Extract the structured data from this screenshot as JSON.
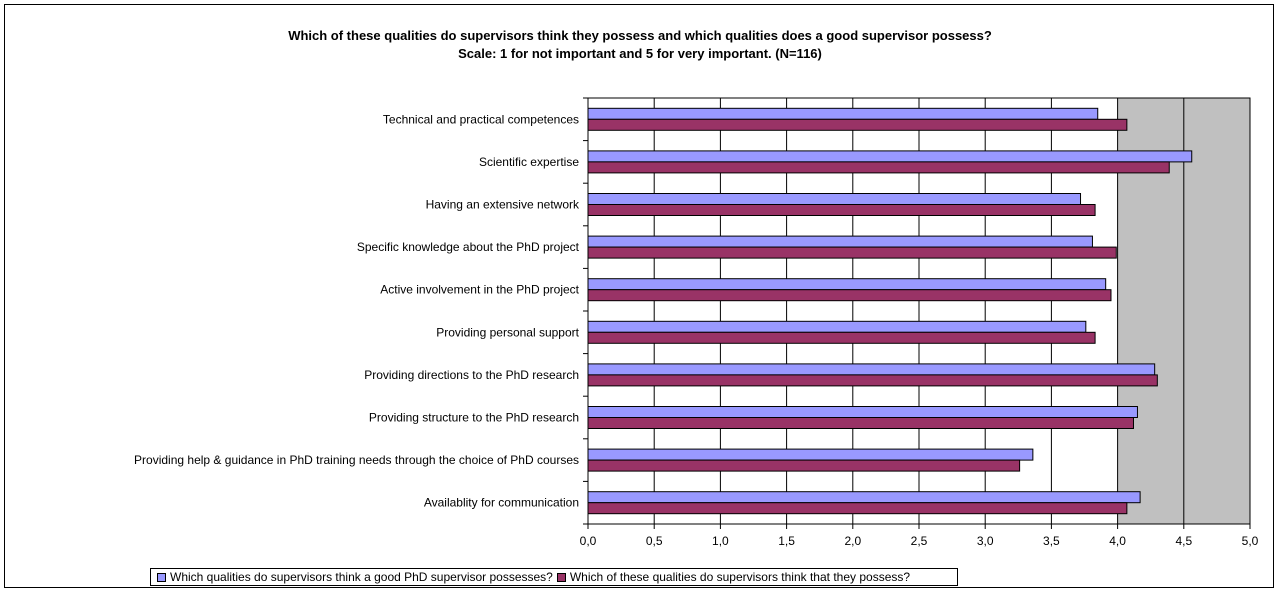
{
  "chart_data": {
    "type": "bar",
    "orientation": "horizontal",
    "title": "Which of these qualities do supervisors think they possess and which qualities does a good supervisor possess?",
    "subtitle": "Scale: 1 for not important and 5 for very important. (N=116)",
    "categories": [
      "Technical and practical competences",
      "Scientific expertise ",
      "Having an extensive network ",
      "Specific knowledge about the PhD project",
      "Active involvement in the PhD project",
      "Providing personal support ",
      "Providing directions to the PhD research",
      "Providing structure to the PhD research",
      "Providing help & guidance in PhD training needs through the choice of  PhD courses",
      "Availablity for communication"
    ],
    "series": [
      {
        "name": "Which qualities do supervisors think a good PhD supervisor possesses?",
        "color": "#9999ff",
        "values": [
          3.85,
          4.56,
          3.72,
          3.81,
          3.91,
          3.76,
          4.28,
          4.15,
          3.36,
          4.17
        ]
      },
      {
        "name": "Which of these qualities do supervisors think that they possess?",
        "color": "#993366",
        "values": [
          4.07,
          4.39,
          3.83,
          3.99,
          3.95,
          3.83,
          4.3,
          4.12,
          3.26,
          4.07
        ]
      }
    ],
    "xlim": [
      0,
      5
    ],
    "x_ticks": [
      "0,0",
      "0,5",
      "1,0",
      "1,5",
      "2,0",
      "2,5",
      "3,0",
      "3,5",
      "4,0",
      "4,5",
      "5,0"
    ],
    "grid": true,
    "shaded_region": [
      4,
      5
    ],
    "legend_position": "bottom"
  }
}
